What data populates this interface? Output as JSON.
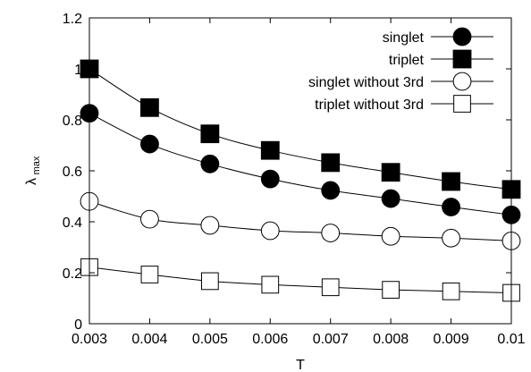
{
  "chart_data": {
    "type": "line",
    "xlabel": "T",
    "ylabel_main": "λ",
    "ylabel_sub": "max",
    "xlim": [
      0.003,
      0.01
    ],
    "ylim": [
      0,
      1.2
    ],
    "xticks": [
      0.003,
      0.004,
      0.005,
      0.006,
      0.007,
      0.008,
      0.009,
      0.01
    ],
    "xtick_labels": [
      "0.003",
      "0.004",
      "0.005",
      "0.006",
      "0.007",
      "0.008",
      "0.009",
      "0.01"
    ],
    "yticks": [
      0,
      0.2,
      0.4,
      0.6,
      0.8,
      1,
      1.2
    ],
    "ytick_labels": [
      "0",
      "0.2",
      "0.4",
      "0.6",
      "0.8",
      "1",
      "1.2"
    ],
    "legend_position": "top-right",
    "grid": false,
    "x": [
      0.003,
      0.004,
      0.005,
      0.006,
      0.007,
      0.008,
      0.009,
      0.01
    ],
    "series": [
      {
        "name": "singlet",
        "marker": "filled-circle",
        "values": [
          0.826,
          0.705,
          0.627,
          0.568,
          0.523,
          0.491,
          0.458,
          0.427
        ]
      },
      {
        "name": "triplet",
        "marker": "filled-square",
        "values": [
          1.0,
          0.848,
          0.745,
          0.68,
          0.632,
          0.594,
          0.558,
          0.527
        ]
      },
      {
        "name": "singlet without 3rd",
        "marker": "open-circle",
        "values": [
          0.48,
          0.41,
          0.386,
          0.365,
          0.356,
          0.343,
          0.336,
          0.325
        ]
      },
      {
        "name": "triplet without 3rd",
        "marker": "open-square",
        "values": [
          0.222,
          0.193,
          0.167,
          0.153,
          0.143,
          0.133,
          0.127,
          0.121
        ]
      }
    ]
  }
}
